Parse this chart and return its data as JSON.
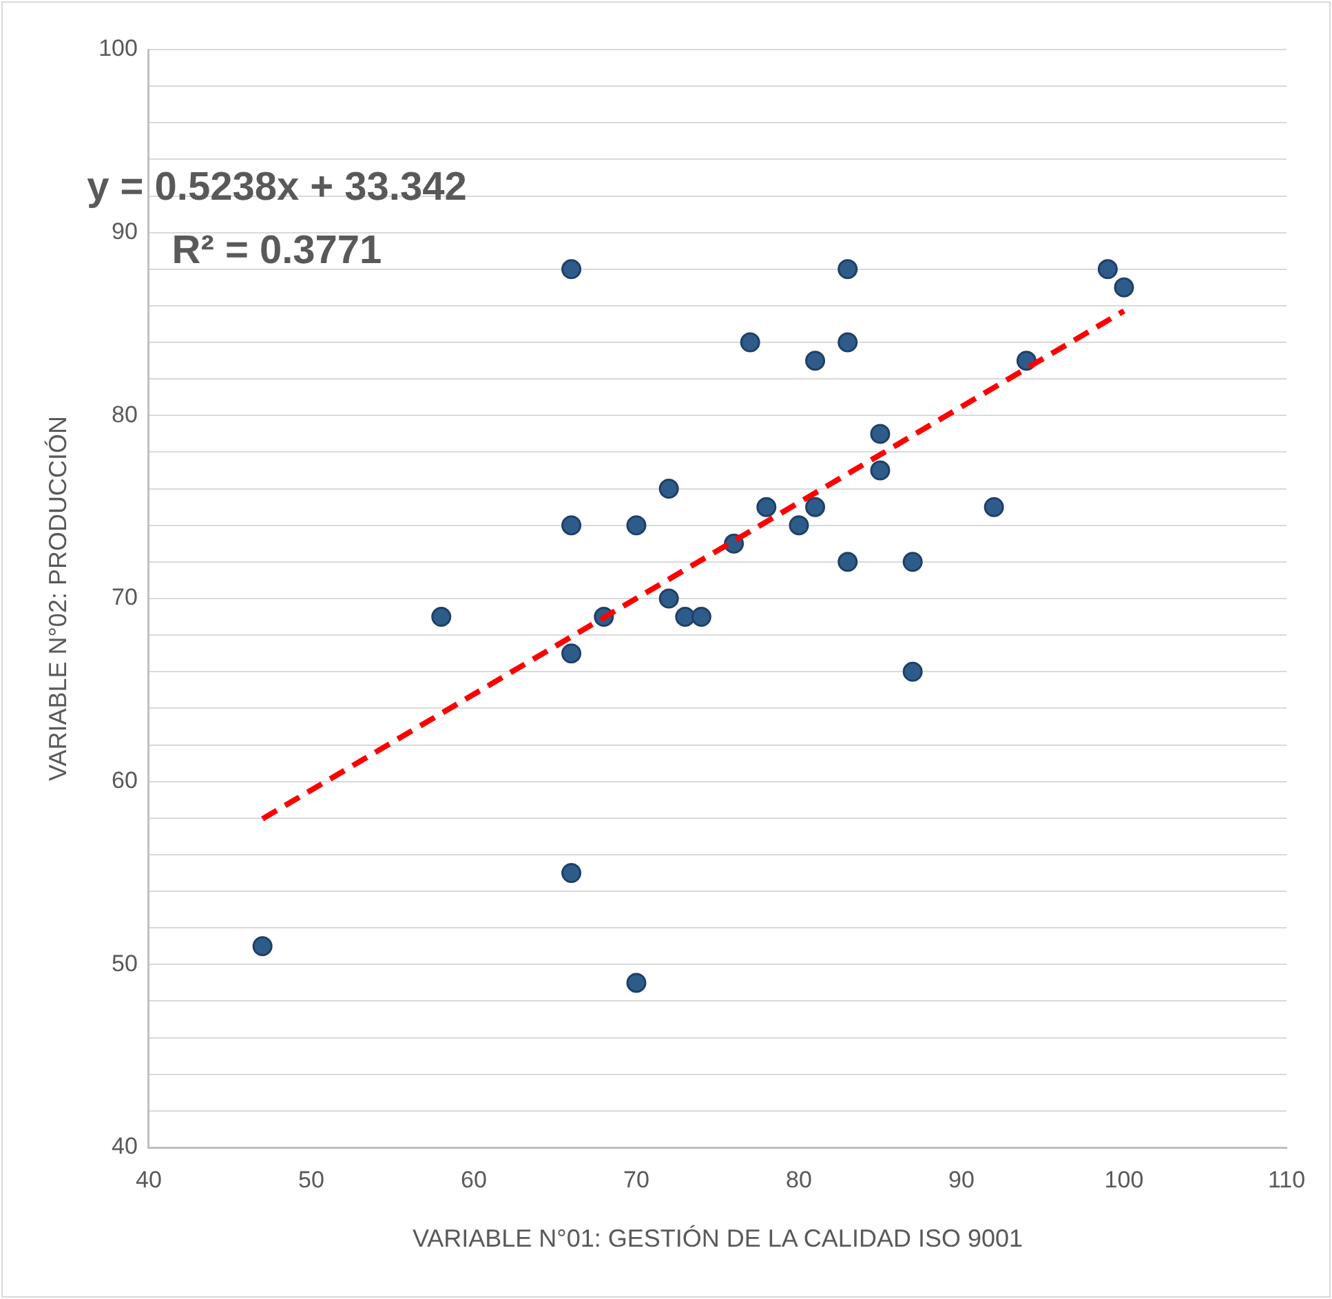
{
  "chart_data": {
    "type": "scatter",
    "xlabel": "VARIABLE N°01: GESTIÓN DE LA CALIDAD ISO 9001",
    "ylabel": "VARIABLE N°02: PRODUCCIÓN",
    "annotations": [
      "y = 0.5238x + 33.342",
      "R² = 0.3771"
    ],
    "xlim": [
      40,
      110
    ],
    "xticks": [
      40,
      50,
      60,
      70,
      80,
      90,
      100,
      110
    ],
    "ylim": [
      40,
      100
    ],
    "yticks": [
      40,
      {
        "value": 42,
        "label": null
      },
      {
        "value": 44,
        "label": null
      },
      {
        "value": 46,
        "label": null
      },
      {
        "value": 48,
        "label": null
      },
      50,
      {
        "value": 52,
        "label": null
      },
      {
        "value": 54,
        "label": null
      },
      {
        "value": 56,
        "label": null
      },
      {
        "value": 58,
        "label": null
      },
      60,
      {
        "value": 62,
        "label": null
      },
      {
        "value": 64,
        "label": null
      },
      {
        "value": 66,
        "label": null
      },
      {
        "value": 68,
        "label": null
      },
      70,
      {
        "value": 72,
        "label": null
      },
      {
        "value": 74,
        "label": null
      },
      {
        "value": 76,
        "label": null
      },
      {
        "value": 78,
        "label": null
      },
      80,
      {
        "value": 82,
        "label": null
      },
      {
        "value": 84,
        "label": null
      },
      {
        "value": 86,
        "label": null
      },
      {
        "value": 88,
        "label": null
      },
      90,
      {
        "value": 92,
        "label": null
      },
      {
        "value": 94,
        "label": null
      },
      {
        "value": 96,
        "label": null
      },
      {
        "value": 98,
        "label": null
      },
      100
    ],
    "grid": "y",
    "legend": false,
    "marker": "circle",
    "series": [
      {
        "type": "scatter",
        "color": "#2e5c8a",
        "x": [
          47,
          58,
          66,
          66,
          66,
          66,
          68,
          70,
          70,
          72,
          72,
          73,
          74,
          76,
          77,
          78,
          80,
          81,
          81,
          83,
          83,
          83,
          85,
          85,
          87,
          87,
          92,
          94,
          99,
          100
        ],
        "values": [
          51,
          69,
          88,
          74,
          67,
          55,
          69,
          74,
          49,
          76,
          70,
          69,
          69,
          73,
          84,
          75,
          74,
          83,
          75,
          88,
          84,
          72,
          79,
          77,
          72,
          66,
          75,
          83,
          88,
          87
        ]
      },
      {
        "type": "line",
        "color": "#ff0000",
        "line_style": "dashed",
        "marker": "none",
        "x": [
          47,
          100
        ],
        "values": [
          57.96,
          85.72
        ]
      }
    ]
  }
}
